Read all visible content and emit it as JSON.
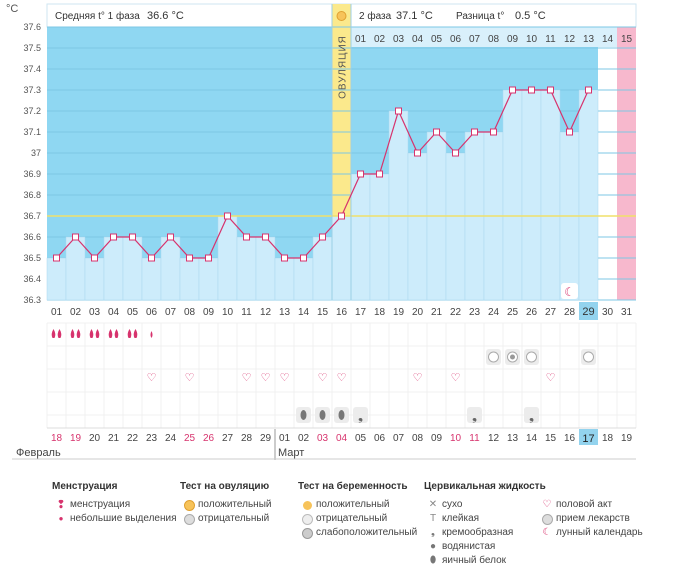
{
  "chart_data": {
    "type": "line",
    "y_unit_label": "°C",
    "ylim": [
      36.3,
      37.6
    ],
    "yticks": [
      "37.6",
      "37.5",
      "37.4",
      "37.3",
      "37.2",
      "37.1",
      "37",
      "36.9",
      "36.8",
      "36.7",
      "36.6",
      "36.5",
      "36.4",
      "36.3"
    ],
    "coverline": 36.7,
    "ovulation_label": "ОВУЛЯЦИЯ",
    "ovulation_day_index": 15,
    "phase1": {
      "label": "Средняя t° 1 фаза",
      "value": "36.6 °C"
    },
    "phase2": {
      "label": "2 фаза",
      "value": "37.1 °C"
    },
    "difference": {
      "label": "Разница t°",
      "value": "0.5 °C"
    },
    "cycle_days": [
      "01",
      "02",
      "03",
      "04",
      "05",
      "06",
      "07",
      "08",
      "09",
      "10",
      "11",
      "12",
      "13",
      "14",
      "15",
      "16",
      "17",
      "18",
      "19",
      "20",
      "21",
      "22",
      "23",
      "24",
      "25",
      "26",
      "27",
      "28",
      "29",
      "30",
      "31"
    ],
    "phase2_day_labels": [
      "01",
      "02",
      "03",
      "04",
      "05",
      "06",
      "07",
      "08",
      "09",
      "10",
      "11",
      "12",
      "13",
      "14",
      "15"
    ],
    "temperatures": [
      36.5,
      36.6,
      36.5,
      36.6,
      36.6,
      36.5,
      36.6,
      36.5,
      36.5,
      36.7,
      36.6,
      36.6,
      36.5,
      36.5,
      36.6,
      36.7,
      36.9,
      36.9,
      37.2,
      37.0,
      37.1,
      37.0,
      37.1,
      37.1,
      37.3,
      37.3,
      37.3,
      37.1,
      37.3,
      null,
      null
    ],
    "period_days": [
      29,
      30
    ],
    "highlight_cycle_day": "29",
    "moon_day_index": 27,
    "calendar_dates": [
      "18",
      "19",
      "20",
      "21",
      "22",
      "23",
      "24",
      "25",
      "26",
      "27",
      "28",
      "29",
      "01",
      "02",
      "03",
      "04",
      "05",
      "06",
      "07",
      "08",
      "09",
      "10",
      "11",
      "12",
      "13",
      "14",
      "15",
      "16",
      "17",
      "18",
      "19"
    ],
    "weekend_date_indices": [
      0,
      1,
      7,
      8,
      14,
      15,
      21,
      22,
      28
    ],
    "today_date_index": 28,
    "month_feb": "Февраль",
    "month_mar": "Март",
    "menstruation_heavy": [
      0,
      1,
      2,
      3,
      4
    ],
    "menstruation_light": [
      5
    ],
    "pregnancy_tests": [
      23,
      24,
      25,
      28
    ],
    "pregnancy_weak_index": 24,
    "intercourse": [
      5,
      7,
      10,
      11,
      12,
      14,
      15,
      19,
      21,
      26
    ],
    "fluid_eggwhite": [
      13,
      14,
      15,
      25
    ],
    "fluid_creamy": [
      16,
      22,
      25
    ],
    "colors": {
      "sky": "#8fd7f2",
      "bar": "#cdecfb",
      "bar_border": "#a9d8ef",
      "line": "#d7336d",
      "ovulation": "#fbe98c",
      "period": "#f7b8cd",
      "coverline": "#f0e06a",
      "weekend": "#d7336d",
      "today": "#93d3ee"
    }
  },
  "legend": {
    "menstruation": {
      "title": "Менструация",
      "items": [
        "менструация",
        "небольшие выделения"
      ]
    },
    "ovulation_test": {
      "title": "Тест на овуляцию",
      "items": [
        "положительный",
        "отрицательный"
      ]
    },
    "pregnancy_test": {
      "title": "Тест на беременность",
      "items": [
        "положительный",
        "отрицательный",
        "слабоположительный"
      ]
    },
    "cervical": {
      "title": "Цервикальная жидкость",
      "items": [
        "сухо",
        "клейкая",
        "кремообразная",
        "водянистая",
        "яичный белок"
      ]
    },
    "other": {
      "items": [
        "половой акт",
        "прием лекарств",
        "лунный календарь"
      ]
    }
  }
}
